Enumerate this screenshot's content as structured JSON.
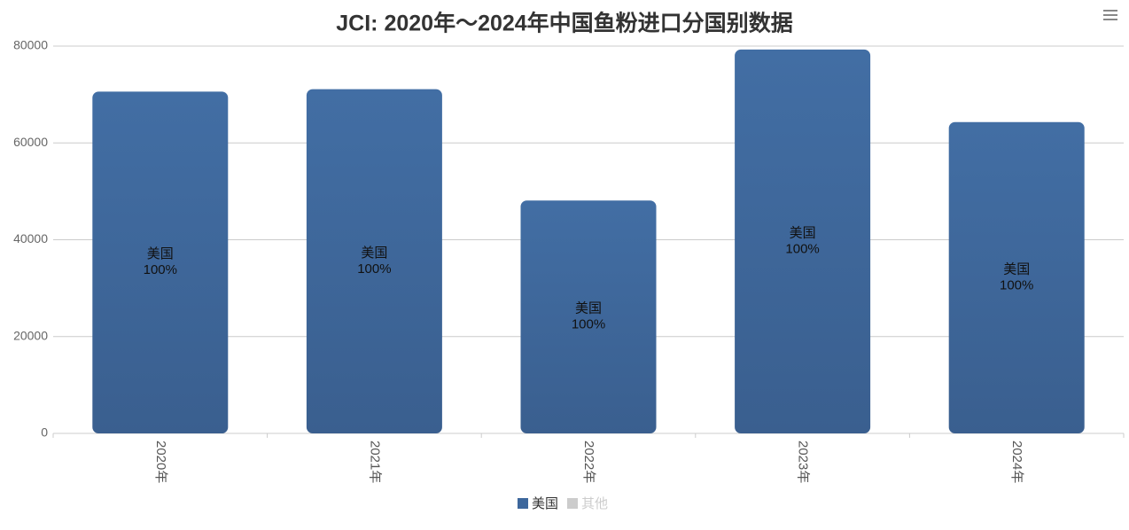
{
  "chart_data": {
    "type": "stacked-bar",
    "title": "JCI: 2020年～2024年中国鱼粉进口分国别数据",
    "categories": [
      "2020年",
      "2021年",
      "2022年",
      "2023年",
      "2024年"
    ],
    "series": [
      {
        "name": "美国",
        "color": "#3d679c",
        "values": [
          70600,
          71100,
          48100,
          79300,
          64300
        ],
        "share_labels": [
          "100%",
          "100%",
          "100%",
          "100%",
          "100%"
        ]
      },
      {
        "name": "其他",
        "color": "#cccccc",
        "values": [
          0,
          0,
          0,
          0,
          0
        ],
        "visible": false
      }
    ],
    "ylim": [
      0,
      80000
    ],
    "yticks": [
      0,
      20000,
      40000,
      60000,
      80000
    ],
    "grid": true
  }
}
